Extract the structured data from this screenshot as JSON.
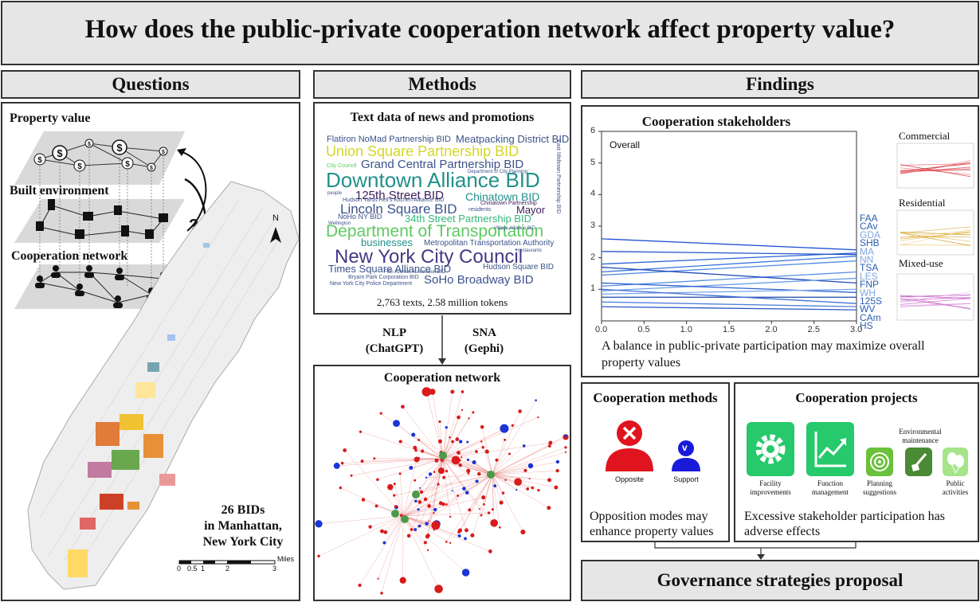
{
  "title": "How does the public-private cooperation network affect property value?",
  "questions": {
    "header": "Questions",
    "layer1": "Property value",
    "layer2": "Built environment",
    "layer3": "Cooperation network",
    "question_mark": "?",
    "map_north": "N",
    "map_caption_line1": "26 BIDs",
    "map_caption_line2": "in Manhattan,",
    "map_caption_line3": "New York City",
    "scale_ticks": [
      "0",
      "0.5",
      "1",
      "2",
      "3"
    ],
    "scale_unit": "Miles"
  },
  "methods": {
    "header": "Methods",
    "text_title": "Text data of news and promotions",
    "text_stats": "2,763 texts, 2.58 million tokens",
    "nlp_line1": "NLP",
    "nlp_line2": "(ChatGPT)",
    "sna_line1": "SNA",
    "sna_line2": "(Gephi)",
    "network_title": "Cooperation network",
    "wordcloud": [
      {
        "text": "Flatiron NoMad Partnership BID",
        "color": "#3b528b"
      },
      {
        "text": "Meatpacking District BID",
        "color": "#3b528b"
      },
      {
        "text": "Union Square Partnership BID",
        "color": "#d4d62a"
      },
      {
        "text": "Grand Central Partnership BID",
        "color": "#3b528b"
      },
      {
        "text": "Downtown Alliance BID",
        "color": "#21918c"
      },
      {
        "text": "125th Street BID",
        "color": "#3b1c5a"
      },
      {
        "text": "Chinatown BID",
        "color": "#21918c"
      },
      {
        "text": "Lincoln Square BID",
        "color": "#3b528b"
      },
      {
        "text": "Mayor",
        "color": "#3b1c5a"
      },
      {
        "text": "34th Street Partnership BID",
        "color": "#35b779"
      },
      {
        "text": "Department of Transportation",
        "color": "#5ec962"
      },
      {
        "text": "businesses",
        "color": "#21918c"
      },
      {
        "text": "Metropolitan Transportation Authority",
        "color": "#3b528b"
      },
      {
        "text": "New York City Council",
        "color": "#443983"
      },
      {
        "text": "Times Square Alliance BID",
        "color": "#3b528b"
      },
      {
        "text": "Hudson Square BID",
        "color": "#3b528b"
      },
      {
        "text": "SoHo Broadway BID",
        "color": "#3b528b"
      },
      {
        "text": "NoHo NY BID",
        "color": "#3b528b"
      },
      {
        "text": "Chinatown Partnership",
        "color": "#3b1c5a"
      },
      {
        "text": "Bryant Park Corporation BID",
        "color": "#3b528b"
      },
      {
        "text": "New York City Police Department",
        "color": "#3b528b"
      },
      {
        "text": "City Council",
        "color": "#5ec962"
      },
      {
        "text": "residents",
        "color": "#3b528b"
      },
      {
        "text": "Department of City Planning",
        "color": "#3b528b"
      },
      {
        "text": "restaurants",
        "color": "#3b528b"
      },
      {
        "text": "Village Alliance BID",
        "color": "#3b528b"
      },
      {
        "text": "East Midtown Partnership BID",
        "color": "#3b528b"
      },
      {
        "text": "Wellington",
        "color": "#3b528b"
      },
      {
        "text": "people",
        "color": "#3b528b"
      },
      {
        "text": "Fifth Avenue Association BID",
        "color": "#3b528b"
      },
      {
        "text": "Hudson Yards Hell's Kitchen Alliance BID",
        "color": "#3b528b"
      }
    ]
  },
  "findings": {
    "header": "Findings",
    "stakeholders_title": "Cooperation stakeholders",
    "overall_label": "Overall",
    "commercial_label": "Commercial",
    "residential_label": "Residential",
    "mixed_label": "Mixed-use",
    "stakeholder_codes": [
      "FAA",
      "CAv",
      "GDA",
      "SHB",
      "MA",
      "NN",
      "TSA",
      "LES",
      "FNP",
      "WH",
      "125S",
      "WV",
      "CAm",
      "HS"
    ],
    "stakeholders_text": "A balance in public-private participation may maximize overall property values",
    "methods_title": "Cooperation methods",
    "opposite_label": "Opposite",
    "support_label": "Support",
    "support_mark": "v",
    "methods_text_line1": "Opposition modes may",
    "methods_text_line2": "enhance property values",
    "projects_title": "Cooperation projects",
    "env_label_line1": "Environmental",
    "env_label_line2": "maintenance",
    "facility_line1": "Facility",
    "facility_line2": "improvements",
    "function_line1": "Function",
    "function_line2": "management",
    "planning_line1": "Planning",
    "planning_line2": "suggestions",
    "public_line1": "Public",
    "public_line2": "activities",
    "projects_text_line1": "Excessive stakeholder participation has",
    "projects_text_line2": "adverse effects",
    "proposal": "Governance strategies proposal"
  },
  "chart_data": {
    "type": "line",
    "title": "Overall",
    "x_ticks": [
      "0.0",
      "0.5",
      "1.0",
      "1.5",
      "2.0",
      "2.5",
      "3.0"
    ],
    "y_ticks": [
      "1",
      "2",
      "3",
      "4",
      "5",
      "6"
    ],
    "xlim": [
      0,
      3
    ],
    "ylim": [
      0,
      6
    ],
    "series": [
      {
        "name": "FAA",
        "values": [
          [
            0,
            2.6
          ],
          [
            3,
            2.25
          ]
        ]
      },
      {
        "name": "CAv",
        "values": [
          [
            0,
            1.8
          ],
          [
            3,
            2.15
          ]
        ]
      },
      {
        "name": "GDA",
        "values": [
          [
            0,
            1.55
          ],
          [
            3,
            2.05
          ]
        ]
      },
      {
        "name": "SHB",
        "values": [
          [
            0,
            1.45
          ],
          [
            3,
            1.9
          ]
        ]
      },
      {
        "name": "MA",
        "values": [
          [
            0,
            2.2
          ],
          [
            3,
            2.1
          ]
        ]
      },
      {
        "name": "NN",
        "values": [
          [
            0,
            1.1
          ],
          [
            3,
            1.55
          ]
        ]
      },
      {
        "name": "TSA",
        "values": [
          [
            0,
            1.7
          ],
          [
            3,
            1.2
          ]
        ]
      },
      {
        "name": "LES",
        "values": [
          [
            0,
            0.95
          ],
          [
            3,
            1.35
          ]
        ]
      },
      {
        "name": "FNP",
        "values": [
          [
            0,
            1.2
          ],
          [
            3,
            0.9
          ]
        ]
      },
      {
        "name": "WH",
        "values": [
          [
            0,
            0.85
          ],
          [
            3,
            1.0
          ]
        ]
      },
      {
        "name": "125S",
        "values": [
          [
            0,
            0.75
          ],
          [
            3,
            0.75
          ]
        ]
      },
      {
        "name": "WV",
        "values": [
          [
            0,
            1.0
          ],
          [
            3,
            0.55
          ]
        ]
      },
      {
        "name": "CAm",
        "values": [
          [
            0,
            0.6
          ],
          [
            3,
            0.45
          ]
        ]
      },
      {
        "name": "HS",
        "values": [
          [
            0,
            0.45
          ],
          [
            3,
            0.35
          ]
        ]
      }
    ]
  }
}
